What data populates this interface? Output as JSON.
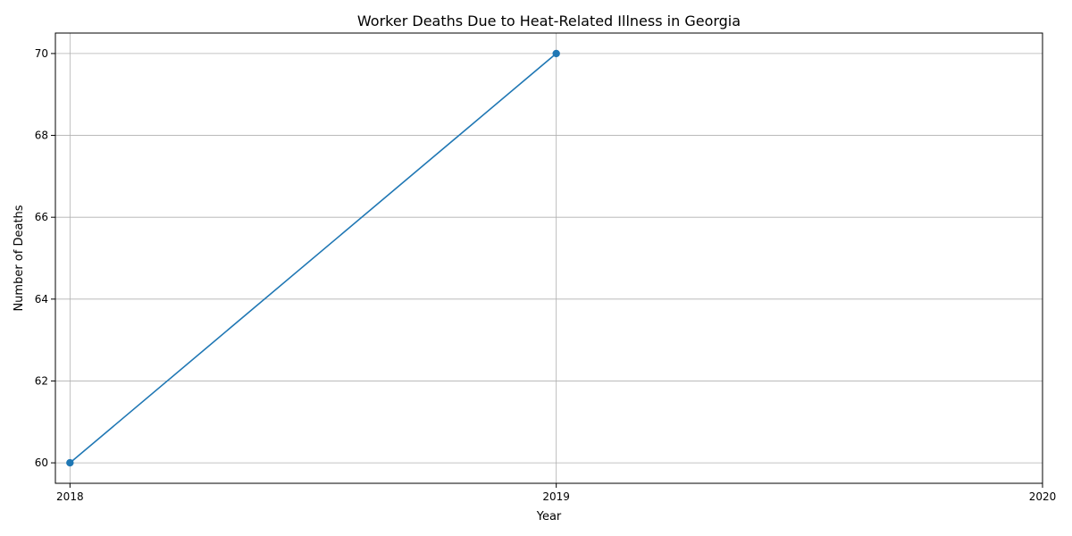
{
  "chart_data": {
    "type": "line",
    "title": "Worker Deaths Due to Heat-Related Illness in Georgia",
    "xlabel": "Year",
    "ylabel": "Number of Deaths",
    "x": [
      2018,
      2019
    ],
    "x_ticks": [
      "2018",
      "2019",
      "2020"
    ],
    "xlim": [
      2017.97,
      2020
    ],
    "series": [
      {
        "values": [
          60,
          70
        ],
        "color": "#1f77b4",
        "marker": "circle"
      }
    ],
    "y_ticks": [
      60,
      62,
      64,
      66,
      68,
      70
    ],
    "ylim": [
      59.5,
      70.5
    ],
    "grid": true
  }
}
